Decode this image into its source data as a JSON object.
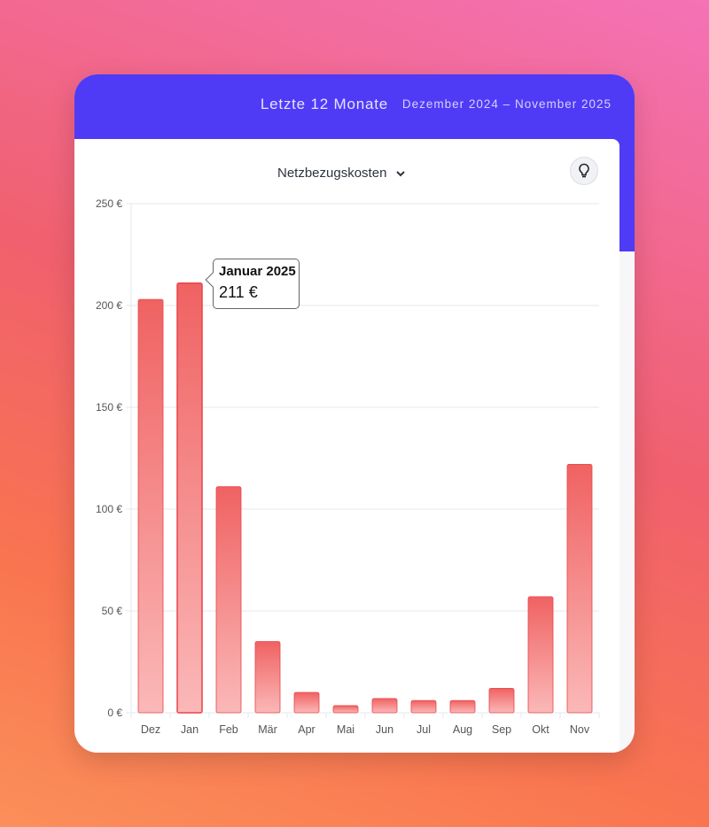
{
  "header": {
    "title": "Letzte 12 Monate",
    "range": "Dezember 2024 – November 2025"
  },
  "selector": {
    "label": "Netzbezugskosten",
    "icon": "chevron-down-icon"
  },
  "hint_button": {
    "icon": "lightbulb-icon"
  },
  "tooltip": {
    "title": "Januar 2025",
    "value": "211 €"
  },
  "colors": {
    "header": "#4f3bf6",
    "bar_top": "#f06262",
    "bar_bottom": "#fbb8b8",
    "bar_stroke": "#e8444a"
  },
  "chart_data": {
    "type": "bar",
    "categories": [
      "Dez",
      "Jan",
      "Feb",
      "Mär",
      "Apr",
      "Mai",
      "Jun",
      "Jul",
      "Aug",
      "Sep",
      "Okt",
      "Nov"
    ],
    "values": [
      203,
      211,
      111,
      35,
      10,
      3.5,
      7,
      6,
      6,
      12,
      57,
      122
    ],
    "ylim": [
      0,
      250
    ],
    "yticks": [
      0,
      50,
      100,
      150,
      200,
      250
    ],
    "ytick_labels": [
      "0 €",
      "50 €",
      "100 €",
      "150 €",
      "200 €",
      "250 €"
    ],
    "grid": true,
    "highlighted": "Jan"
  }
}
